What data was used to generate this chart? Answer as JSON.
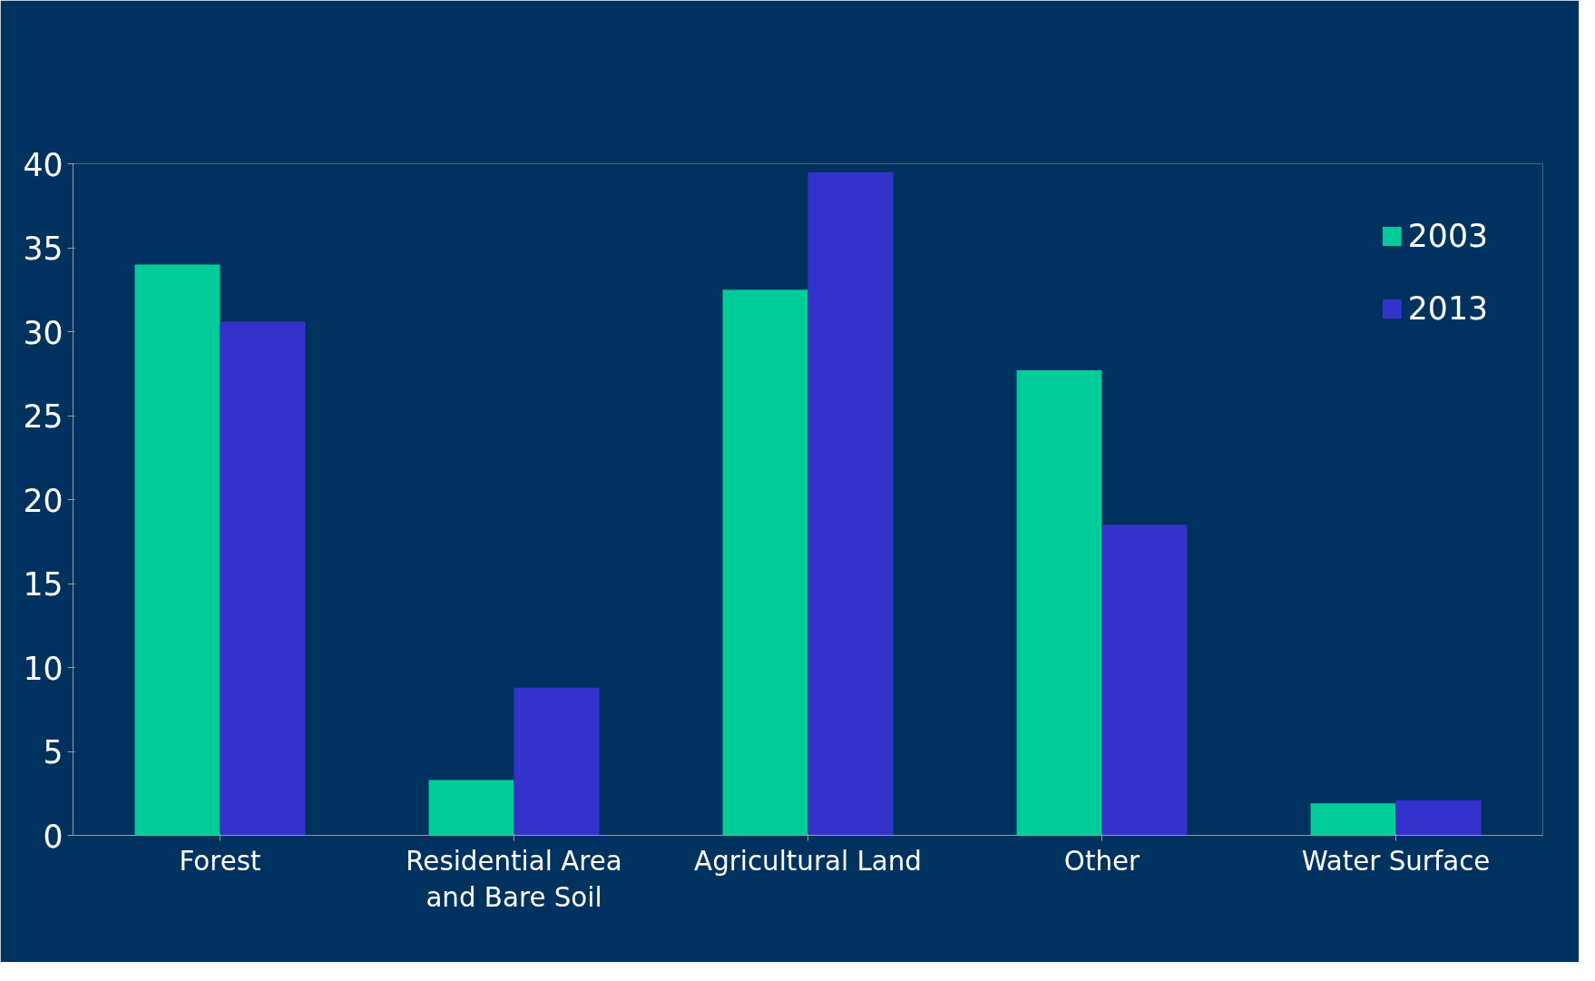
{
  "chart_data": {
    "type": "bar",
    "categories": [
      "Forest",
      "Residential Area\nand Bare Soil",
      "Agricultural Land",
      "Other",
      "Water Surface"
    ],
    "series": [
      {
        "name": "2003",
        "color": "#00cc99",
        "values": [
          34,
          3.3,
          32.5,
          27.7,
          1.9
        ]
      },
      {
        "name": "2013",
        "color": "#3333cc",
        "values": [
          30.6,
          8.8,
          39.5,
          18.5,
          2.1
        ]
      }
    ],
    "ylim": [
      0,
      40
    ],
    "yticks": [
      0,
      5,
      10,
      15,
      20,
      25,
      30,
      35,
      40
    ],
    "grid": false,
    "legend": "right"
  }
}
